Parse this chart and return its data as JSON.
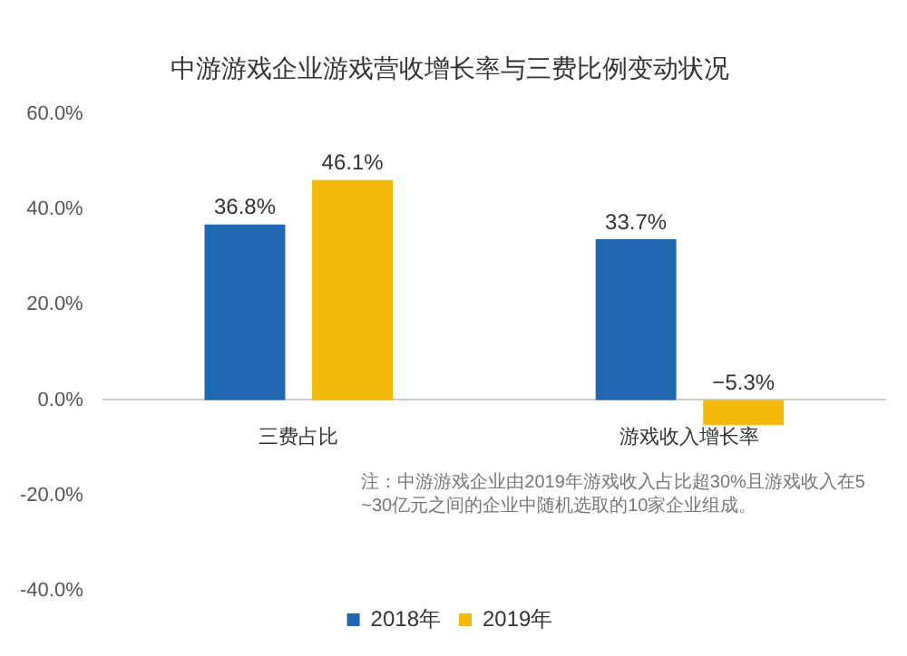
{
  "chart_data": {
    "type": "bar",
    "title": "中游游戏企业游戏营收增长率与三费比例变动状况",
    "categories": [
      "三费占比",
      "游戏收入增长率"
    ],
    "series": [
      {
        "name": "2018年",
        "color": "#1f66b0",
        "values": [
          36.8,
          33.7
        ],
        "value_labels": [
          "36.8%",
          "33.7%"
        ]
      },
      {
        "name": "2019年",
        "color": "#f5b90a",
        "values": [
          46.1,
          -5.3
        ],
        "value_labels": [
          "46.1%",
          "−5.3%"
        ]
      }
    ],
    "ylim": [
      -40,
      60
    ],
    "yticks": [
      {
        "value": -40,
        "label": "-40.0%"
      },
      {
        "value": -20,
        "label": "-20.0%"
      },
      {
        "value": 0,
        "label": "0.0%"
      },
      {
        "value": 20,
        "label": "20.0%"
      },
      {
        "value": 40,
        "label": "40.0%"
      },
      {
        "value": 60,
        "label": "60.0%"
      }
    ],
    "grid": false,
    "legend": "bottom",
    "annotations": [
      "注：中游游戏企业由2019年游戏收入占比超30%且游戏收入在5~30亿元之间的企业中随机选取的10家企业组成。"
    ]
  }
}
